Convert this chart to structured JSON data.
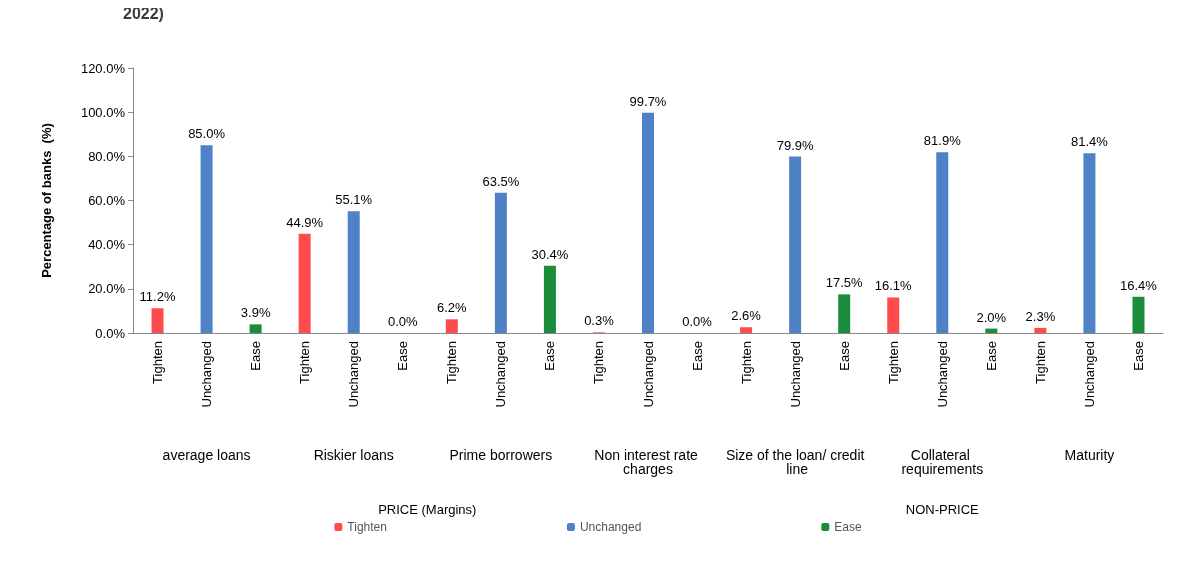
{
  "chart_data": {
    "type": "bar",
    "title": "2022)",
    "ylabel": "Percentage of banks  (%)",
    "categories": [
      "Tighten",
      "Unchanged",
      "Ease",
      "Tighten",
      "Unchanged",
      "Ease",
      "Tighten",
      "Unchanged",
      "Ease",
      "Tighten",
      "Unchanged",
      "Ease",
      "Tighten",
      "Unchanged",
      "Ease",
      "Tighten",
      "Unchanged",
      "Ease",
      "Tighten",
      "Unchanged",
      "Ease"
    ],
    "series": [
      {
        "name": "Tighten",
        "color": "#ff4b4b",
        "values": [
          11.2,
          null,
          null,
          44.9,
          null,
          null,
          6.2,
          null,
          null,
          0.3,
          null,
          null,
          2.6,
          null,
          null,
          16.1,
          null,
          null,
          2.3,
          null,
          null
        ],
        "value_labels": [
          "11.2%",
          null,
          null,
          "44.9%",
          null,
          null,
          "6.2%",
          null,
          null,
          "0.3%",
          null,
          null,
          "2.6%",
          null,
          null,
          "16.1%",
          null,
          null,
          "2.3%",
          null,
          null
        ]
      },
      {
        "name": "Unchanged",
        "color": "#4f81c7",
        "values": [
          null,
          85.0,
          null,
          null,
          55.1,
          null,
          null,
          63.5,
          null,
          null,
          99.7,
          null,
          null,
          79.9,
          null,
          null,
          81.9,
          null,
          null,
          81.4,
          null
        ],
        "value_labels": [
          null,
          "85.0%",
          null,
          null,
          "55.1%",
          null,
          null,
          "63.5%",
          null,
          null,
          "99.7%",
          null,
          null,
          "79.9%",
          null,
          null,
          "81.9%",
          null,
          null,
          "81.4%",
          null
        ]
      },
      {
        "name": "Ease",
        "color": "#1a8c3c",
        "values": [
          null,
          null,
          3.9,
          null,
          null,
          0.0,
          null,
          null,
          30.4,
          null,
          null,
          0.0,
          null,
          null,
          17.5,
          null,
          null,
          2.0,
          null,
          null,
          16.4
        ],
        "value_labels": [
          null,
          null,
          "3.9%",
          null,
          null,
          "0.0%",
          null,
          null,
          "30.4%",
          null,
          null,
          "0.0%",
          null,
          null,
          "17.5%",
          null,
          null,
          "2.0%",
          null,
          null,
          "16.4%"
        ]
      }
    ],
    "annotations": [
      "average loans",
      "Riskier loans",
      "Prime borrowers",
      "Non interest rate charges",
      "Size of the loan/ credit line",
      "Collateral requirements",
      "Maturity",
      "PRICE (Margins)",
      "NON-PRICE"
    ],
    "ylim": [
      0,
      120
    ],
    "yticks": [
      {
        "value": 0,
        "label": "0.0%"
      },
      {
        "value": 20,
        "label": "20.0%"
      },
      {
        "value": 40,
        "label": "40.0%"
      },
      {
        "value": 60,
        "label": "60.0%"
      },
      {
        "value": 80,
        "label": "80.0%"
      },
      {
        "value": 100,
        "label": "100.0%"
      },
      {
        "value": 120,
        "label": "120.0%"
      }
    ],
    "grid": false,
    "legend": "bottom"
  }
}
